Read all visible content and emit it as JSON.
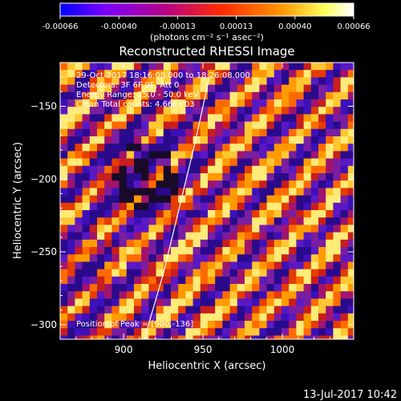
{
  "chart_data": {
    "type": "heatmap",
    "title": "Reconstructed RHESSI Image",
    "xlabel": "Heliocentric X (arcsec)",
    "ylabel": "Heliocentric Y (arcsec)",
    "xlim": [
      860,
      1045
    ],
    "ylim": [
      -310,
      -120
    ],
    "x_ticks": [
      900,
      950,
      1000
    ],
    "y_ticks": [
      -150,
      -200,
      -250,
      -300
    ],
    "colorbar": {
      "min": -0.00066,
      "max": 0.00066,
      "tick_labels": [
        "-0.00066",
        "-0.00040",
        "-0.00013",
        "0.00013",
        "0.00040",
        "0.00066"
      ],
      "unit_label": "(photons cm⁻² s⁻¹ asec⁻²)",
      "colors": [
        "#0000ff",
        "#7a00ff",
        "#b4008c",
        "#ff2a00",
        "#ff9400",
        "#ffff5a",
        "#ffffff"
      ]
    },
    "info_lines": [
      "29-Oct-2017 18:16:08.000 to 18:26:08.000",
      "Detectors: 3F 6F 9F, Att 0",
      "Energy Range: 25.0 - 50.0 keV",
      "Clean     Total counts: 4.66E+03"
    ],
    "peak_label": "Position of Peak = [900,-136]",
    "peak": [
      900,
      -136
    ],
    "limb_curve": [
      [
        913,
        -310
      ],
      [
        925,
        -265
      ],
      [
        935,
        -220
      ],
      [
        945,
        -175
      ],
      [
        954,
        -130
      ]
    ],
    "grid": false
  },
  "footer": {
    "date": "13-Jul-2017 10:42"
  }
}
